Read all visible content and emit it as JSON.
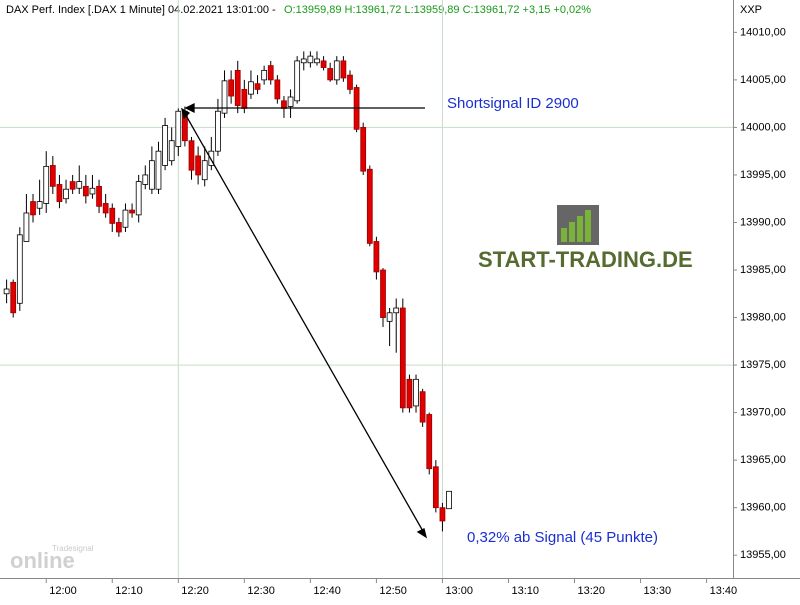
{
  "chart_data": {
    "type": "candlestick",
    "header": "DAX Perf. Index [.DAX  1 Minute] 04.02.2021 13:01:00 -",
    "header_quote": "O:13959,89 H:13961,72 L:13959,89 C:13961,72 +3,15 +0,02%",
    "axis_symbol": "XXP",
    "annotations": [
      "Shortsignal ID 2900",
      "0,32% ab Signal (45 Punkte)"
    ],
    "logo": "START-TRADING.DE",
    "watermark": [
      "Tradesignal",
      "online"
    ],
    "x": [
      "11:54",
      "11:55",
      "11:56",
      "11:57",
      "11:58",
      "11:59",
      "12:00",
      "12:01",
      "12:02",
      "12:03",
      "12:04",
      "12:05",
      "12:06",
      "12:07",
      "12:08",
      "12:09",
      "12:10",
      "12:11",
      "12:12",
      "12:13",
      "12:14",
      "12:15",
      "12:16",
      "12:17",
      "12:18",
      "12:19",
      "12:20",
      "12:21",
      "12:22",
      "12:23",
      "12:24",
      "12:25",
      "12:26",
      "12:27",
      "12:28",
      "12:29",
      "12:30",
      "12:31",
      "12:32",
      "12:33",
      "12:34",
      "12:35",
      "12:36",
      "12:37",
      "12:38",
      "12:39",
      "12:40",
      "12:41",
      "12:42",
      "12:43",
      "12:44",
      "12:45",
      "12:46",
      "12:47",
      "12:48",
      "12:49",
      "12:50",
      "12:51",
      "12:52",
      "12:53",
      "12:54",
      "12:55",
      "12:56",
      "12:57",
      "12:58",
      "12:59",
      "13:00",
      "13:01"
    ],
    "open": [
      13982.5,
      13983.7,
      13981.5,
      13988,
      13992.2,
      13991.5,
      13992,
      13996,
      13994,
      13992.5,
      13994.3,
      13993.6,
      13993.8,
      13993,
      13993.8,
      13992,
      13991.5,
      13990,
      13989.5,
      13991.3,
      13990.8,
      13994,
      13993.5,
      13993.5,
      13996,
      13996.5,
      13998,
      14001.7,
      13998.6,
      13997,
      13994.5,
      13996,
      13997.5,
      14001.5,
      14005,
      14006,
      14004,
      14003.5,
      14004.6,
      14005,
      14006.5,
      14005,
      14002.8,
      14002.2,
      14002.8,
      14006.8,
      14006.8,
      14006.8,
      14007,
      14006.2,
      14005,
      14007,
      14005.5,
      14004.2,
      14000,
      13995.6,
      13988,
      13985,
      13979.6,
      13980.5,
      13981,
      13973.5,
      13970.7,
      13972.2,
      13969.8,
      13964.3,
      13960,
      13959.89
    ],
    "high": [
      13984,
      13984,
      13989.5,
      13993,
      13993,
      13994.5,
      13997.5,
      13997,
      13995,
      13994.5,
      13995,
      13996,
      13995,
      13995,
      13994.5,
      13993,
      13992,
      13990.5,
      13992,
      13992,
      13995,
      13996,
      13998,
      13998.5,
      14001,
      14000,
      14002,
      14002.2,
      13999,
      13998,
      13998,
      13999,
      14003,
      14006,
      14006,
      14007,
      14005,
      14006,
      14005.5,
      14006.5,
      14007,
      14005.5,
      14003.3,
      14004,
      14007.5,
      14008,
      14008,
      14008,
      14007.5,
      14006.8,
      14007.5,
      14007.5,
      14006,
      14004.5,
      14000.5,
      13996,
      13988.5,
      13985.2,
      13981,
      13982,
      13982,
      13974,
      13974,
      13972.5,
      13970,
      13965,
      13960.5,
      13961.72
    ],
    "low": [
      13981.5,
      13980,
      13980.7,
      13988,
      13990,
      13990.8,
      13991,
      13993,
      13991.5,
      13992,
      13993,
      13993,
      13992,
      13992.5,
      13991,
      13990.5,
      13989,
      13988.5,
      13989,
      13990.5,
      13990,
      13993.5,
      13993,
      13993,
      13995.5,
      13996,
      13997,
      13998,
      13994.5,
      13994,
      13993.8,
      13995.5,
      13997,
      14001,
      14002.5,
      14001.5,
      14001.5,
      14003,
      14003.5,
      14004.5,
      14004.5,
      14002.5,
      14001,
      14001,
      14002.5,
      14006,
      14006.3,
      14006.5,
      14006,
      14004.8,
      14004.5,
      14004.8,
      14003.5,
      13999.5,
      13995,
      13987.5,
      13984,
      13979,
      13977,
      13976.3,
      13970,
      13970,
      13970,
      13968.5,
      13963.5,
      13959.5,
      13957.5,
      13959.89
    ],
    "close": [
      13983,
      13980.5,
      13988.7,
      13991,
      13990.8,
      13992.2,
      13995.9,
      13993.8,
      13992.2,
      13993.5,
      13993.5,
      13994.3,
      13992.8,
      13993.6,
      13991.7,
      13991,
      13989.9,
      13989,
      13991.3,
      13991,
      13994.3,
      13995,
      13996.5,
      13997.5,
      14000.2,
      13998.6,
      14001.7,
      13998.6,
      13995.5,
      13995,
      13996.5,
      13997.5,
      14001.7,
      14004.9,
      14003.3,
      14002.3,
      14002,
      14004.8,
      14004,
      14006,
      14005,
      14003,
      14002,
      14003.2,
      14007,
      14007.2,
      14007.5,
      14007.2,
      14006.3,
      14005,
      14007,
      14005.2,
      14004,
      13999.8,
      13995.4,
      13987.8,
      13984.8,
      13980,
      13980.5,
      13981,
      13970.5,
      13970.5,
      13973.5,
      13969,
      13964.1,
      13960,
      13958.6,
      13961.72
    ],
    "up_color": "#ffffff",
    "down_color": "#e00000",
    "xlim": [
      "11:53",
      "13:44"
    ],
    "xticks": [
      "12:00",
      "12:10",
      "12:20",
      "12:30",
      "12:40",
      "12:50",
      "13:00",
      "13:10",
      "13:20",
      "13:30",
      "13:40"
    ],
    "ylim": [
      13952.6,
      14011.3
    ],
    "yticks": [
      {
        "value": 13955,
        "label": "13955,00"
      },
      {
        "value": 13960,
        "label": "13960,00"
      },
      {
        "value": 13965,
        "label": "13965,00"
      },
      {
        "value": 13970,
        "label": "13970,00"
      },
      {
        "value": 13975,
        "label": "13975,00"
      },
      {
        "value": 13980,
        "label": "13980,00"
      },
      {
        "value": 13985,
        "label": "13985,00"
      },
      {
        "value": 13990,
        "label": "13990,00"
      },
      {
        "value": 13995,
        "label": "13995,00"
      },
      {
        "value": 14000,
        "label": "14000,00"
      },
      {
        "value": 14005,
        "label": "14005,00"
      },
      {
        "value": 14010,
        "label": "14010,00"
      }
    ],
    "ygrid": [
      13975,
      14000
    ],
    "xgrid": [
      "12:20",
      "13:00"
    ]
  }
}
